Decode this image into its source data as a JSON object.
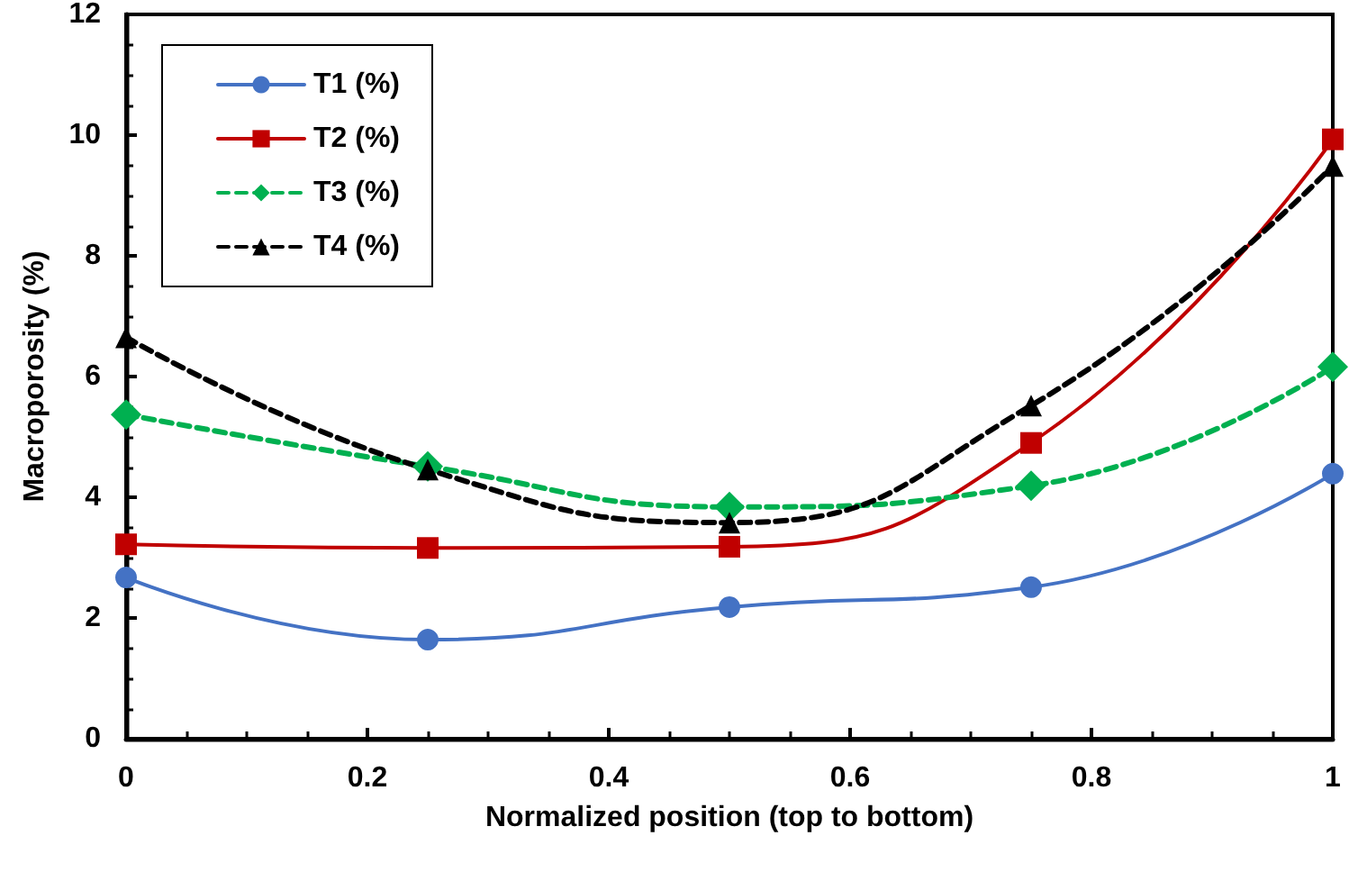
{
  "chart_data": {
    "type": "line",
    "xlabel": "Normalized position (top to bottom)",
    "ylabel": "Macroporosity (%)",
    "x": [
      0,
      0.25,
      0.5,
      0.75,
      1
    ],
    "series": [
      {
        "name": "T1 (%)",
        "color": "#4472c4",
        "values": [
          2.67,
          1.64,
          2.18,
          2.51,
          4.39
        ],
        "marker": "circle",
        "line_style": "solid"
      },
      {
        "name": "T2 (%)",
        "color": "#c00000",
        "values": [
          3.22,
          3.16,
          3.18,
          4.9,
          9.93
        ],
        "marker": "square",
        "line_style": "solid"
      },
      {
        "name": "T3 (%)",
        "color": "#00b050",
        "values": [
          5.37,
          4.51,
          3.84,
          4.19,
          6.16
        ],
        "marker": "diamond",
        "line_style": "dashed"
      },
      {
        "name": "T4 (%)",
        "color": "#000000",
        "values": [
          6.65,
          4.46,
          3.58,
          5.52,
          9.49
        ],
        "marker": "triangle",
        "line_style": "dashed"
      }
    ],
    "xlim": [
      0,
      1
    ],
    "xticks": [
      0,
      0.2,
      0.4,
      0.6,
      0.8,
      1
    ],
    "ylim": [
      0,
      12
    ],
    "yticks": [
      0,
      2,
      4,
      6,
      8,
      10,
      12
    ],
    "grid": false,
    "legend": "top left"
  }
}
